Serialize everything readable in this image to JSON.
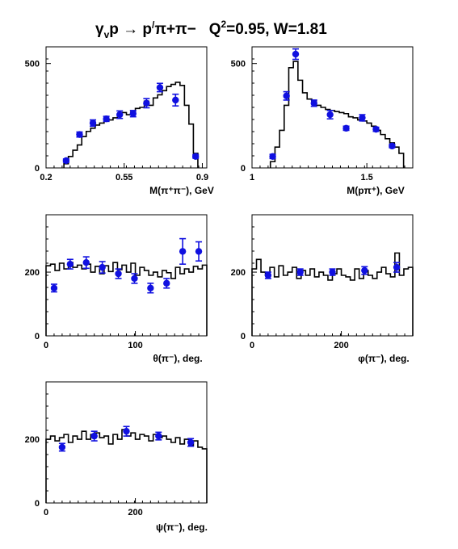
{
  "header": {
    "title_main": "γ",
    "title_sub1": "v",
    "title_mid": "p → p",
    "title_sup": "/",
    "title_rest": "π+π−",
    "title_q2": "Q",
    "title_q2sup": "2",
    "title_values": "=0.95, W=1.81"
  },
  "colors": {
    "data": "#1010e0",
    "model": "#000000",
    "frame": "#000000"
  },
  "chart_data": [
    {
      "type": "line",
      "id": "mpipi",
      "xlabel": "M(π⁺π⁻), GeV",
      "xlim": [
        0.2,
        0.92
      ],
      "ylim": [
        0,
        580
      ],
      "xticks": [
        0.2,
        0.55,
        0.9
      ],
      "xticklabels": [
        "0.2",
        "0.55",
        "0.9"
      ],
      "yticks": [
        0,
        500
      ],
      "yticklabels": [
        "0",
        "500"
      ],
      "model_edges": [
        0.28,
        0.3,
        0.32,
        0.34,
        0.36,
        0.38,
        0.4,
        0.42,
        0.44,
        0.46,
        0.48,
        0.5,
        0.52,
        0.54,
        0.56,
        0.58,
        0.6,
        0.62,
        0.64,
        0.66,
        0.68,
        0.7,
        0.72,
        0.74,
        0.76,
        0.78,
        0.8,
        0.82,
        0.84,
        0.86,
        0.88
      ],
      "model_values": [
        20,
        55,
        85,
        110,
        150,
        175,
        190,
        205,
        215,
        225,
        230,
        240,
        250,
        265,
        255,
        270,
        285,
        290,
        320,
        300,
        335,
        350,
        370,
        390,
        400,
        410,
        395,
        300,
        210,
        70
      ],
      "points_x": [
        0.29,
        0.35,
        0.41,
        0.47,
        0.53,
        0.59,
        0.65,
        0.71,
        0.78,
        0.87
      ],
      "points_y": [
        35,
        160,
        215,
        235,
        255,
        260,
        310,
        385,
        325,
        55
      ],
      "points_err": [
        8,
        12,
        15,
        12,
        18,
        15,
        22,
        20,
        28,
        8
      ]
    },
    {
      "type": "line",
      "id": "mppip",
      "xlabel": "M(pπ⁺), GeV",
      "xlim": [
        1.0,
        1.7
      ],
      "ylim": [
        0,
        580
      ],
      "xticks": [
        1.0,
        1.5
      ],
      "xticklabels": [
        "1",
        "1.5"
      ],
      "yticks": [
        0,
        500
      ],
      "yticklabels": [
        "0",
        "500"
      ],
      "model_edges": [
        1.08,
        1.1,
        1.12,
        1.14,
        1.16,
        1.18,
        1.2,
        1.22,
        1.24,
        1.26,
        1.28,
        1.3,
        1.32,
        1.34,
        1.36,
        1.38,
        1.4,
        1.42,
        1.44,
        1.46,
        1.48,
        1.5,
        1.52,
        1.54,
        1.56,
        1.58,
        1.6,
        1.62,
        1.64,
        1.66
      ],
      "model_values": [
        30,
        100,
        180,
        300,
        480,
        510,
        420,
        360,
        330,
        320,
        300,
        290,
        280,
        275,
        270,
        265,
        260,
        245,
        240,
        230,
        225,
        215,
        200,
        180,
        160,
        140,
        120,
        100,
        70
      ],
      "points_x": [
        1.09,
        1.15,
        1.19,
        1.27,
        1.34,
        1.41,
        1.48,
        1.54,
        1.61
      ],
      "points_y": [
        55,
        345,
        545,
        310,
        255,
        190,
        240,
        185,
        105
      ],
      "points_err": [
        10,
        20,
        25,
        15,
        20,
        10,
        15,
        10,
        8
      ]
    },
    {
      "type": "line",
      "id": "theta",
      "xlabel": "θ(π⁻), deg.",
      "xlim": [
        0,
        180
      ],
      "ylim": [
        0,
        380
      ],
      "xticks": [
        0,
        100
      ],
      "xticklabels": [
        "0",
        "100"
      ],
      "yticks": [
        0,
        200
      ],
      "yticklabels": [
        "0",
        "200"
      ],
      "model_edges": [
        0,
        5,
        10,
        15,
        20,
        25,
        30,
        35,
        40,
        45,
        50,
        55,
        60,
        65,
        70,
        75,
        80,
        85,
        90,
        95,
        100,
        105,
        110,
        115,
        120,
        125,
        130,
        135,
        140,
        145,
        150,
        155,
        160,
        165,
        170,
        175,
        180
      ],
      "model_values": [
        220,
        225,
        205,
        228,
        210,
        230,
        215,
        222,
        210,
        225,
        200,
        218,
        195,
        220,
        202,
        230,
        208,
        222,
        200,
        228,
        190,
        215,
        205,
        190,
        200,
        185,
        205,
        198,
        180,
        215,
        195,
        210,
        200,
        218,
        210,
        222
      ],
      "points_x": [
        9,
        27,
        45,
        63,
        81,
        99,
        117,
        135,
        153,
        171
      ],
      "points_y": [
        150,
        225,
        230,
        215,
        195,
        180,
        150,
        165,
        265,
        265
      ],
      "points_err": [
        12,
        15,
        18,
        18,
        15,
        15,
        15,
        15,
        40,
        30
      ]
    },
    {
      "type": "line",
      "id": "phi",
      "xlabel": "φ(π⁻), deg.",
      "xlim": [
        0,
        360
      ],
      "ylim": [
        0,
        380
      ],
      "xticks": [
        0,
        200
      ],
      "xticklabels": [
        "0",
        "200"
      ],
      "yticks": [
        0,
        200
      ],
      "yticklabels": [
        "0",
        "200"
      ],
      "model_edges": [
        0,
        10,
        20,
        30,
        40,
        50,
        60,
        70,
        80,
        90,
        100,
        110,
        120,
        130,
        140,
        150,
        160,
        170,
        180,
        190,
        200,
        210,
        220,
        230,
        240,
        250,
        260,
        270,
        280,
        290,
        300,
        310,
        320,
        330,
        340,
        350,
        360
      ],
      "model_values": [
        210,
        240,
        200,
        190,
        215,
        185,
        220,
        190,
        200,
        215,
        180,
        205,
        190,
        210,
        185,
        200,
        190,
        175,
        195,
        210,
        190,
        185,
        175,
        210,
        180,
        205,
        190,
        180,
        200,
        215,
        195,
        185,
        260,
        190,
        210,
        215
      ],
      "points_x": [
        36,
        108,
        180,
        252,
        324
      ],
      "points_y": [
        190,
        200,
        200,
        205,
        215
      ],
      "points_err": [
        10,
        10,
        10,
        12,
        15
      ]
    },
    {
      "type": "line",
      "id": "psi",
      "xlabel": "ψ(π⁻), deg.",
      "xlim": [
        0,
        360
      ],
      "ylim": [
        0,
        380
      ],
      "xticks": [
        0,
        200
      ],
      "xticklabels": [
        "0",
        "200"
      ],
      "yticks": [
        0,
        200
      ],
      "yticklabels": [
        "0",
        "200"
      ],
      "model_edges": [
        0,
        10,
        20,
        30,
        40,
        50,
        60,
        70,
        80,
        90,
        100,
        110,
        120,
        130,
        140,
        150,
        160,
        170,
        180,
        190,
        200,
        210,
        220,
        230,
        240,
        250,
        260,
        270,
        280,
        290,
        300,
        310,
        320,
        330,
        340,
        350,
        360
      ],
      "model_values": [
        200,
        210,
        195,
        205,
        215,
        190,
        210,
        200,
        225,
        200,
        215,
        220,
        205,
        210,
        185,
        215,
        200,
        230,
        210,
        220,
        200,
        215,
        210,
        195,
        215,
        205,
        210,
        200,
        190,
        205,
        185,
        200,
        180,
        195,
        175,
        170
      ],
      "points_x": [
        36,
        108,
        180,
        252,
        324
      ],
      "points_y": [
        175,
        210,
        225,
        210,
        190
      ],
      "points_err": [
        12,
        15,
        15,
        12,
        12
      ]
    }
  ]
}
